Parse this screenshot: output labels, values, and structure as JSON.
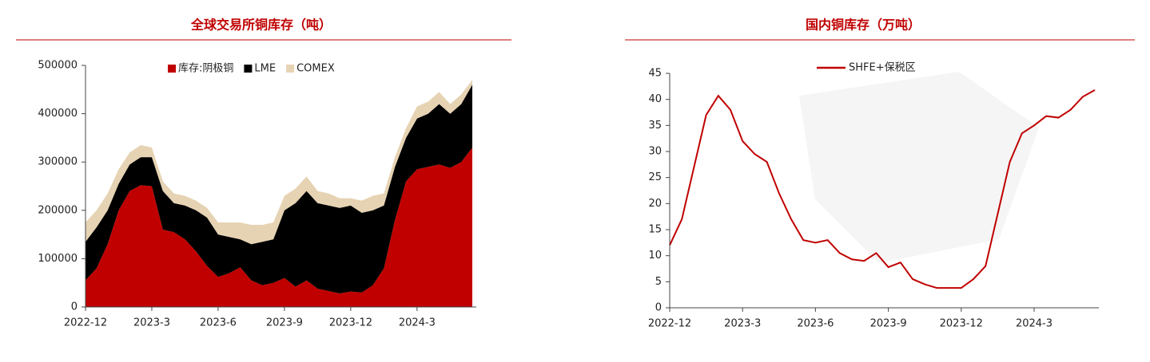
{
  "chart_data": [
    {
      "type": "area",
      "stacked": true,
      "title": "全球交易所铜库存（吨）",
      "categories": [
        "2022-12",
        null,
        null,
        null,
        null,
        null,
        "2023-3",
        null,
        null,
        null,
        null,
        null,
        "2023-6",
        null,
        null,
        null,
        null,
        null,
        "2023-9",
        null,
        null,
        null,
        null,
        null,
        "2023-12",
        null,
        null,
        null,
        null,
        null,
        "2024-3",
        null,
        null,
        null,
        null,
        null
      ],
      "series": [
        {
          "name": "库存:阴极铜",
          "color": "#c00000",
          "values": [
            55000,
            80000,
            130000,
            200000,
            240000,
            252000,
            250000,
            160000,
            155000,
            140000,
            115000,
            85000,
            62000,
            70000,
            82000,
            55000,
            45000,
            50000,
            60000,
            42000,
            55000,
            38000,
            33000,
            28000,
            32000,
            30000,
            45000,
            80000,
            180000,
            260000,
            285000,
            290000,
            295000,
            288000,
            300000,
            330000
          ]
        },
        {
          "name": "LME",
          "color": "#000000",
          "values": [
            80000,
            85000,
            70000,
            55000,
            55000,
            58000,
            60000,
            80000,
            60000,
            70000,
            85000,
            100000,
            88000,
            75000,
            58000,
            75000,
            90000,
            90000,
            140000,
            173000,
            185000,
            177000,
            177000,
            177000,
            178000,
            165000,
            155000,
            130000,
            110000,
            90000,
            105000,
            110000,
            125000,
            112000,
            120000,
            130000
          ]
        },
        {
          "name": "COMEX",
          "color": "#e6d3b3",
          "values": [
            40000,
            35000,
            35000,
            30000,
            25000,
            25000,
            20000,
            20000,
            20000,
            20000,
            20000,
            20000,
            25000,
            30000,
            35000,
            40000,
            35000,
            35000,
            30000,
            30000,
            30000,
            25000,
            25000,
            20000,
            15000,
            25000,
            30000,
            25000,
            20000,
            20000,
            25000,
            25000,
            25000,
            20000,
            20000,
            10000
          ]
        }
      ],
      "ylim": [
        0,
        500000
      ],
      "yticks": [
        0,
        100000,
        200000,
        300000,
        400000,
        500000
      ],
      "legend": "top"
    },
    {
      "type": "line",
      "title": "国内铜库存（万吨）",
      "categories": [
        "2022-12",
        null,
        null,
        null,
        null,
        null,
        "2023-3",
        null,
        null,
        null,
        null,
        null,
        "2023-6",
        null,
        null,
        null,
        null,
        null,
        "2023-9",
        null,
        null,
        null,
        null,
        null,
        "2023-12",
        null,
        null,
        null,
        null,
        null,
        "2024-3",
        null,
        null,
        null,
        null,
        null
      ],
      "series": [
        {
          "name": "SHFE+保税区",
          "color": "#c00000",
          "values": [
            12,
            17,
            27,
            37,
            40.7,
            38,
            32,
            29.5,
            28,
            22,
            17,
            13,
            12.5,
            13,
            10.5,
            9.3,
            9,
            10.5,
            7.8,
            8.7,
            5.5,
            4.5,
            3.8,
            3.8,
            3.8,
            5.5,
            8,
            18,
            28,
            33.5,
            35,
            36.8,
            36.5,
            38,
            40.5,
            41.8
          ]
        }
      ],
      "ylim": [
        0,
        45
      ],
      "yticks": [
        0,
        5,
        10,
        15,
        20,
        25,
        30,
        35,
        40,
        45
      ],
      "legend": "top"
    }
  ]
}
